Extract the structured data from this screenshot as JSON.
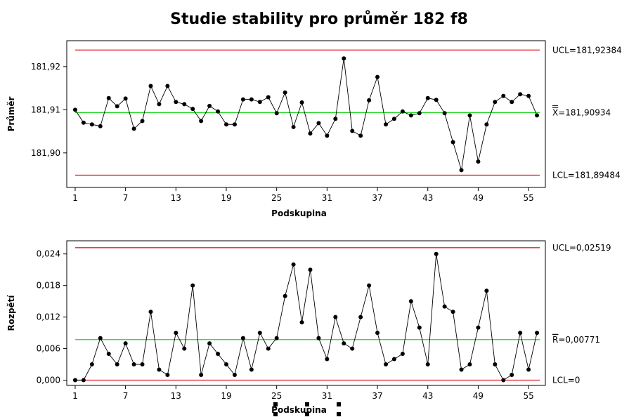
{
  "chart_data": [
    {
      "type": "line",
      "title": "Studie stability pro průměr 182 f8",
      "xlabel": "Podskupina",
      "ylabel": "Průměr",
      "x_ticks": [
        1,
        7,
        13,
        19,
        25,
        31,
        37,
        43,
        49,
        55
      ],
      "x_tick_labels": [
        "1",
        "7",
        "13",
        "19",
        "25",
        "31",
        "37",
        "43",
        "49",
        "55"
      ],
      "xlim": [
        0,
        57
      ],
      "y_ticks": [
        181.9,
        181.91,
        181.92
      ],
      "y_tick_labels": [
        "181,90",
        "181,91",
        "181,92"
      ],
      "ylim": [
        181.892,
        181.926
      ],
      "grid": false,
      "reference_lines": [
        {
          "name": "UCL",
          "value": 181.92384,
          "label": "UCL=181,92384",
          "color": "#e0202c"
        },
        {
          "name": "CL",
          "value": 181.90934,
          "label": "X=181,90934",
          "label_overline": "X",
          "label_rest": "=181,90934",
          "color": "#22d622"
        },
        {
          "name": "LCL",
          "value": 181.89484,
          "label": "LCL=181,89484",
          "color": "#e0202c"
        }
      ],
      "series": [
        {
          "values": [
            181.91,
            181.907,
            181.9066,
            181.9062,
            181.9127,
            181.9108,
            181.9126,
            181.9056,
            181.9074,
            181.9155,
            181.9113,
            181.9155,
            181.9118,
            181.9113,
            181.9102,
            181.9074,
            181.9109,
            181.9096,
            181.9066,
            181.9066,
            181.9124,
            181.9124,
            181.9118,
            181.9129,
            181.9092,
            181.914,
            181.906,
            181.9117,
            181.9045,
            181.9069,
            181.904,
            181.9079,
            181.9219,
            181.9051,
            181.904,
            181.9122,
            181.9176,
            181.9066,
            181.9079,
            181.9096,
            181.9087,
            181.9092,
            181.9127,
            181.9123,
            181.9092,
            181.9025,
            181.896,
            181.9087,
            181.898,
            181.9066,
            181.9118,
            181.9132,
            181.9118,
            181.9136,
            181.9132,
            181.9087
          ],
          "color": "#000000"
        }
      ]
    },
    {
      "type": "line",
      "title": "",
      "xlabel": "Podskupina",
      "ylabel": "Rozpětí",
      "x_ticks": [
        1,
        7,
        13,
        19,
        25,
        31,
        37,
        43,
        49,
        55
      ],
      "x_tick_labels": [
        "1",
        "7",
        "13",
        "19",
        "25",
        "31",
        "37",
        "43",
        "49",
        "55"
      ],
      "xlim": [
        0,
        57
      ],
      "y_ticks": [
        0.0,
        0.006,
        0.012,
        0.018,
        0.024
      ],
      "y_tick_labels": [
        "0,000",
        "0,006",
        "0,012",
        "0,018",
        "0,024"
      ],
      "ylim": [
        -0.001,
        0.0265
      ],
      "grid": false,
      "reference_lines": [
        {
          "name": "UCL",
          "value": 0.02519,
          "label": "UCL=0,02519",
          "color": "#e0202c"
        },
        {
          "name": "CL",
          "value": 0.00771,
          "label": "R=0,00771",
          "label_overline": "R",
          "label_rest": "=0,00771",
          "color": "#22d622"
        },
        {
          "name": "LCL",
          "value": 0,
          "label": "LCL=0",
          "color": "#e0202c"
        }
      ],
      "series": [
        {
          "values": [
            0.0,
            0.0,
            0.003,
            0.008,
            0.005,
            0.003,
            0.007,
            0.003,
            0.003,
            0.013,
            0.002,
            0.001,
            0.009,
            0.006,
            0.018,
            0.001,
            0.007,
            0.005,
            0.003,
            0.001,
            0.008,
            0.002,
            0.009,
            0.006,
            0.008,
            0.016,
            0.022,
            0.011,
            0.021,
            0.008,
            0.004,
            0.012,
            0.007,
            0.006,
            0.012,
            0.018,
            0.009,
            0.003,
            0.004,
            0.005,
            0.015,
            0.01,
            0.003,
            0.024,
            0.014,
            0.013,
            0.002,
            0.003,
            0.01,
            0.017,
            0.003,
            0.0,
            0.001,
            0.009,
            0.002,
            0.009
          ],
          "color": "#000000"
        }
      ]
    }
  ]
}
